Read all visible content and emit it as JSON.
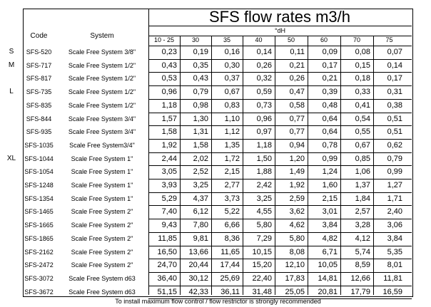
{
  "title": "SFS flow rates m3/h",
  "headers": {
    "code": "Code",
    "system": "System",
    "hardness_unit": "°dH",
    "hardness_columns": [
      "10 - 25",
      "30",
      "35",
      "40",
      "50",
      "60",
      "70",
      "75"
    ]
  },
  "size_labels": [
    {
      "label": "S",
      "row": 0
    },
    {
      "label": "M",
      "row": 1
    },
    {
      "label": "L",
      "row": 3
    },
    {
      "label": "XL",
      "row": 8
    }
  ],
  "rows": [
    {
      "code": "SFS-520",
      "system": "Scale Free System 3/8\"",
      "values": [
        "0,23",
        "0,19",
        "0,16",
        "0,14",
        "0,11",
        "0,09",
        "0,08",
        "0,07"
      ]
    },
    {
      "code": "SFS-717",
      "system": "Scale Free System 1/2\"",
      "values": [
        "0,43",
        "0,35",
        "0,30",
        "0,26",
        "0,21",
        "0,17",
        "0,15",
        "0,14"
      ]
    },
    {
      "code": "SFS-817",
      "system": "Scale Free System 1/2\"",
      "values": [
        "0,53",
        "0,43",
        "0,37",
        "0,32",
        "0,26",
        "0,21",
        "0,18",
        "0,17"
      ]
    },
    {
      "code": "SFS-735",
      "system": "Scale Free System 1/2\"",
      "values": [
        "0,96",
        "0,79",
        "0,67",
        "0,59",
        "0,47",
        "0,39",
        "0,33",
        "0,31"
      ]
    },
    {
      "code": "SFS-835",
      "system": "Scale Free System 1/2\"",
      "values": [
        "1,18",
        "0,98",
        "0,83",
        "0,73",
        "0,58",
        "0,48",
        "0,41",
        "0,38"
      ]
    },
    {
      "code": "SFS-844",
      "system": "Scale Free System 3/4\"",
      "values": [
        "1,57",
        "1,30",
        "1,10",
        "0,96",
        "0,77",
        "0,64",
        "0,54",
        "0,51"
      ]
    },
    {
      "code": "SFS-935",
      "system": "Scale Free System 3/4\"",
      "values": [
        "1,58",
        "1,31",
        "1,12",
        "0,97",
        "0,77",
        "0,64",
        "0,55",
        "0,51"
      ]
    },
    {
      "code": "SFS-1035",
      "system": "Scale Free System3/4\"",
      "values": [
        "1,92",
        "1,58",
        "1,35",
        "1,18",
        "0,94",
        "0,78",
        "0,67",
        "0,62"
      ]
    },
    {
      "code": "SFS-1044",
      "system": "Scale Free System  1\"",
      "values": [
        "2,44",
        "2,02",
        "1,72",
        "1,50",
        "1,20",
        "0,99",
        "0,85",
        "0,79"
      ]
    },
    {
      "code": "SFS-1054",
      "system": "Scale Free System 1\"",
      "values": [
        "3,05",
        "2,52",
        "2,15",
        "1,88",
        "1,49",
        "1,24",
        "1,06",
        "0,99"
      ]
    },
    {
      "code": "SFS-1248",
      "system": "Scale Free System 1\"",
      "values": [
        "3,93",
        "3,25",
        "2,77",
        "2,42",
        "1,92",
        "1,60",
        "1,37",
        "1,27"
      ]
    },
    {
      "code": "SFS-1354",
      "system": "Scale Free System 1\"",
      "values": [
        "5,29",
        "4,37",
        "3,73",
        "3,25",
        "2,59",
        "2,15",
        "1,84",
        "1,71"
      ]
    },
    {
      "code": "SFS-1465",
      "system": "Scale Free System  2\"",
      "values": [
        "7,40",
        "6,12",
        "5,22",
        "4,55",
        "3,62",
        "3,01",
        "2,57",
        "2,40"
      ]
    },
    {
      "code": "SFS-1665",
      "system": "Scale Free System 2\"",
      "values": [
        "9,43",
        "7,80",
        "6,66",
        "5,80",
        "4,62",
        "3,84",
        "3,28",
        "3,06"
      ]
    },
    {
      "code": "SFS-1865",
      "system": "Scale Free System 2\"",
      "values": [
        "11,85",
        "9,81",
        "8,36",
        "7,29",
        "5,80",
        "4,82",
        "4,12",
        "3,84"
      ]
    },
    {
      "code": "SFS-2162",
      "system": "Scale Free System 2\"",
      "values": [
        "16,50",
        "13,66",
        "11,65",
        "10,15",
        "8,08",
        "6,71",
        "5,74",
        "5,35"
      ]
    },
    {
      "code": "SFS-2472",
      "system": "Scale Free System 2\"",
      "values": [
        "24,70",
        "20,44",
        "17,44",
        "15,20",
        "12,10",
        "10,05",
        "8,59",
        "8,01"
      ]
    },
    {
      "code": "SFS-3072",
      "system": "Scale Free System d63",
      "values": [
        "36,40",
        "30,12",
        "25,69",
        "22,40",
        "17,83",
        "14,81",
        "12,66",
        "11,81"
      ]
    },
    {
      "code": "SFS-3672",
      "system": "Scale Free System d63",
      "values": [
        "51,15",
        "42,33",
        "36,11",
        "31,48",
        "25,05",
        "20,81",
        "17,79",
        "16,59"
      ]
    }
  ],
  "footer": "To install maximum flow control / flow restrictor is strongly recommended"
}
